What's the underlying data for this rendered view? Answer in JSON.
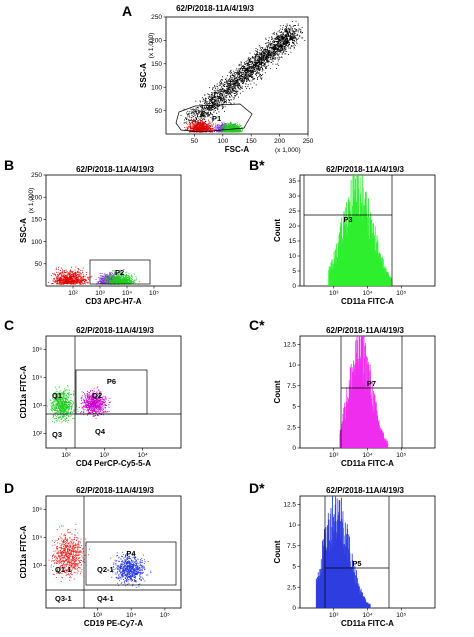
{
  "panels": [
    {
      "id": "A",
      "label": "A",
      "title": "62/P/2018-11A/4/19/3",
      "chart_data": {
        "type": "scatter",
        "title": "62/P/2018-11A/4/19/3",
        "xlabel": "FSC-A",
        "ylabel": "SSC-A",
        "x_unit": "(x 1,000)",
        "y_unit": "(x 1,000)",
        "xlim": [
          0,
          250
        ],
        "ylim": [
          0,
          250
        ],
        "x_ticks": [
          "50",
          "100",
          "150",
          "200",
          "250"
        ],
        "y_ticks": [
          "50",
          "100",
          "150",
          "200",
          "250"
        ],
        "gates": [
          {
            "name": "P1",
            "color": "#000000"
          }
        ],
        "populations": [
          {
            "color": "#000000",
            "x_range": [
              40,
              250
            ],
            "y_range": [
              30,
              250
            ]
          },
          {
            "color": "#e00000",
            "x_range": [
              30,
              90
            ],
            "y_range": [
              5,
              40
            ]
          },
          {
            "color": "#8a2be2",
            "x_range": [
              80,
              130
            ],
            "y_range": [
              5,
              30
            ]
          },
          {
            "color": "#22cc22",
            "x_range": [
              90,
              140
            ],
            "y_range": [
              5,
              30
            ]
          }
        ]
      }
    },
    {
      "id": "B",
      "label": "B",
      "title": "62/P/2018-11A/4/19/3",
      "chart_data": {
        "type": "scatter",
        "title": "62/P/2018-11A/4/19/3",
        "xlabel": "CD3 APC-H7-A",
        "ylabel": "SSC-A",
        "y_unit": "(x 1,000)",
        "x_scale": "log",
        "xlim": [
          10,
          1000000
        ],
        "x_ticks": [
          "10²",
          "10³",
          "10⁴",
          "10⁵"
        ],
        "ylim": [
          0,
          250
        ],
        "y_ticks": [
          "50",
          "100",
          "150",
          "200",
          "250"
        ],
        "gates": [
          {
            "name": "P2",
            "color": "#000000"
          }
        ],
        "populations": [
          {
            "color": "#e00000",
            "x_range": [
              10,
              600
            ],
            "y_range": [
              5,
              50
            ]
          },
          {
            "color": "#8a2be2",
            "x_range": [
              600,
              10000
            ],
            "y_range": [
              5,
              40
            ]
          },
          {
            "color": "#22cc22",
            "x_range": [
              1000,
              30000
            ],
            "y_range": [
              5,
              40
            ]
          }
        ]
      }
    },
    {
      "id": "B*",
      "label": "B*",
      "title": "62/P/2018-11A/4/19/3",
      "chart_data": {
        "type": "histogram",
        "title": "62/P/2018-11A/4/19/3",
        "xlabel": "CD11a FITC-A",
        "ylabel": "Count",
        "x_scale": "log",
        "xlim": [
          100,
          1000000
        ],
        "x_ticks": [
          "10³",
          "10⁴",
          "10⁵"
        ],
        "ylim": [
          0,
          37
        ],
        "y_ticks": [
          "0",
          "5",
          "10",
          "15",
          "20",
          "25",
          "30",
          "35"
        ],
        "color": "#22ee22",
        "distribution": {
          "mode_x": 5000,
          "peak_count": 35,
          "x_range": [
            700,
            50000
          ]
        },
        "gates": [
          {
            "name": "P3"
          }
        ]
      }
    },
    {
      "id": "C",
      "label": "C",
      "title": "62/P/2018-11A/4/19/3",
      "chart_data": {
        "type": "scatter",
        "title": "62/P/2018-11A/4/19/3",
        "xlabel": "CD4 PerCP-Cy5-5-A",
        "ylabel": "CD11a FITC-A",
        "x_scale": "log",
        "xlim": [
          30,
          100000
        ],
        "x_ticks": [
          "10²",
          "10³",
          "10⁴"
        ],
        "y_scale": "log",
        "ylim": [
          30,
          300000
        ],
        "y_ticks": [
          "10²",
          "10³",
          "10⁴",
          "10⁵"
        ],
        "quadrants": [
          "Q1",
          "Q2",
          "Q3",
          "Q4"
        ],
        "gates": [
          {
            "name": "P6"
          }
        ],
        "populations": [
          {
            "color": "#22cc22",
            "x_range": [
              30,
              200
            ],
            "y_range": [
              200,
              6000
            ]
          },
          {
            "color": "#cc00cc",
            "x_range": [
              200,
              1500
            ],
            "y_range": [
              300,
              5000
            ]
          }
        ]
      }
    },
    {
      "id": "C*",
      "label": "C*",
      "title": "62/P/2018-11A/4/19/3",
      "chart_data": {
        "type": "histogram",
        "title": "62/P/2018-11A/4/19/3",
        "xlabel": "CD11a FITC-A",
        "ylabel": "Count",
        "x_scale": "log",
        "xlim": [
          100,
          1000000
        ],
        "x_ticks": [
          "10³",
          "10⁴",
          "10⁵"
        ],
        "ylim": [
          0,
          13.5
        ],
        "y_ticks": [
          "0",
          "2.5",
          "5",
          "7.5",
          "10",
          "12.5"
        ],
        "color": "#ee22ee",
        "distribution": {
          "mode_x": 6000,
          "peak_count": 13,
          "x_range": [
            1500,
            40000
          ]
        },
        "gates": [
          {
            "name": "P7"
          }
        ]
      }
    },
    {
      "id": "D",
      "label": "D",
      "title": "62/P/2018-11A/4/19/3",
      "chart_data": {
        "type": "scatter",
        "title": "62/P/2018-11A/4/19/3",
        "xlabel": "CD19 PE-Cy7-A",
        "ylabel": "CD11a FITC-A",
        "x_scale": "log",
        "xlim": [
          30,
          300000
        ],
        "x_ticks": [
          "10³",
          "10⁴",
          "10⁵"
        ],
        "y_scale": "log",
        "ylim": [
          30,
          300000
        ],
        "y_ticks": [
          "10³",
          "10⁴",
          "10⁵"
        ],
        "quadrants": [
          "Q1-1",
          "Q2-1",
          "Q3-1",
          "Q4-1"
        ],
        "gates": [
          {
            "name": "P4"
          }
        ],
        "populations": [
          {
            "color": "#ee2222",
            "x_range": [
              30,
              600
            ],
            "y_range": [
              200,
              30000
            ]
          },
          {
            "color": "#2233ee",
            "x_range": [
              2000,
              40000
            ],
            "y_range": [
              150,
              4000
            ]
          }
        ]
      }
    },
    {
      "id": "D*",
      "label": "D*",
      "title": "62/P/2018-11A/4/19/3",
      "chart_data": {
        "type": "histogram",
        "title": "62/P/2018-11A/4/19/3",
        "xlabel": "CD11a FITC-A",
        "ylabel": "Count",
        "x_scale": "log",
        "xlim": [
          100,
          1000000
        ],
        "x_ticks": [
          "10³",
          "10⁴",
          "10⁵"
        ],
        "ylim": [
          0,
          13.5
        ],
        "y_ticks": [
          "0",
          "2.5",
          "5",
          "7.5",
          "10",
          "12.5"
        ],
        "color": "#2233dd",
        "distribution": {
          "mode_x": 1200,
          "peak_count": 13,
          "x_range": [
            300,
            12000
          ]
        },
        "gates": [
          {
            "name": "P5"
          }
        ]
      }
    }
  ]
}
